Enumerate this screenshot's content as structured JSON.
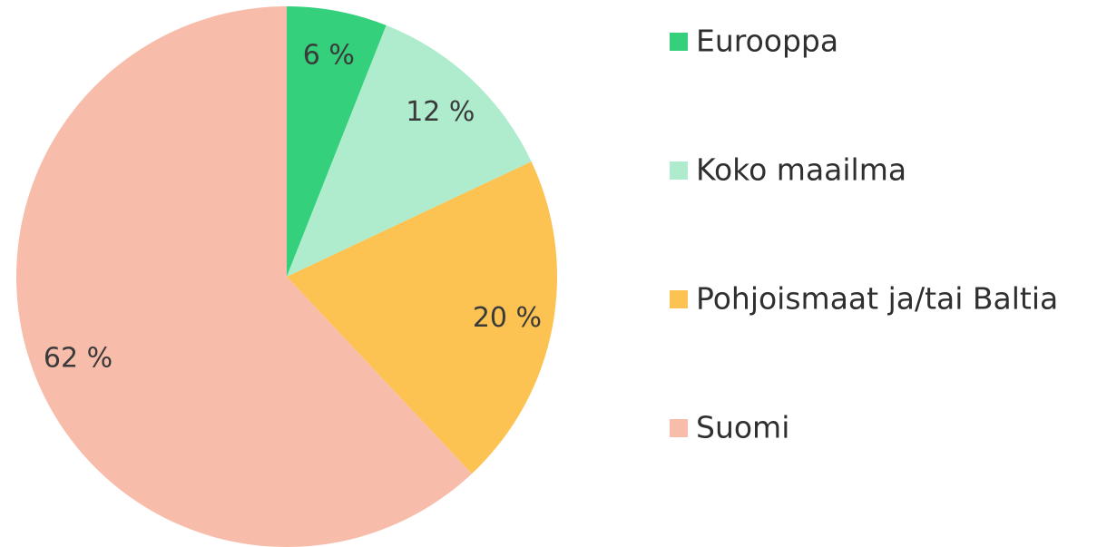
{
  "chart_data": {
    "type": "pie",
    "categories": [
      "Eurooppa",
      "Koko maailma",
      "Pohjoismaat ja/tai Baltia",
      "Suomi"
    ],
    "values": [
      6,
      12,
      20,
      62
    ],
    "value_labels": [
      "6 %",
      "12 %",
      "20 %",
      "62 %"
    ],
    "colors": [
      "#34d07c",
      "#aeeccd",
      "#fcc353",
      "#f8bcaa"
    ],
    "legend": "right"
  }
}
